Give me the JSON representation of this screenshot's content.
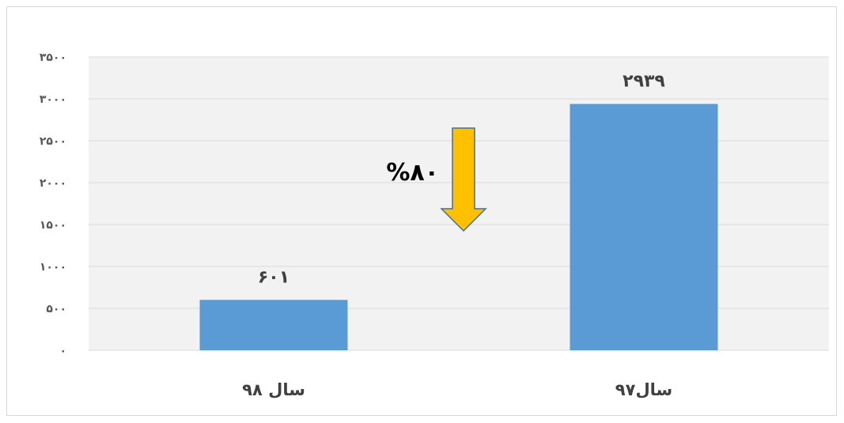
{
  "chart_data": {
    "type": "bar",
    "categories": [
      "سال ۹۸",
      "سال۹۷"
    ],
    "values": [
      601,
      2939
    ],
    "data_labels": [
      "۶۰۱",
      "۲۹۳۹"
    ],
    "ylim": [
      0,
      3500
    ],
    "y_ticks": [
      {
        "value": 0,
        "label": "۰"
      },
      {
        "value": 500,
        "label": "۵۰۰"
      },
      {
        "value": 1000,
        "label": "۱۰۰۰"
      },
      {
        "value": 1500,
        "label": "۱۵۰۰"
      },
      {
        "value": 2000,
        "label": "۲۰۰۰"
      },
      {
        "value": 2500,
        "label": "۲۵۰۰"
      },
      {
        "value": 3000,
        "label": "۳۰۰۰"
      },
      {
        "value": 3500,
        "label": "۳۵۰۰"
      }
    ],
    "grid": true,
    "legend": "none",
    "annotation": {
      "text": "%۸۰",
      "arrow": "down",
      "arrow_color": "#ffc000"
    },
    "colors": {
      "bar": "#5b9bd5",
      "plot_background": "#f2f2f2",
      "gridline": "#d9d9d9",
      "arrow_stroke": "#41719c"
    }
  }
}
